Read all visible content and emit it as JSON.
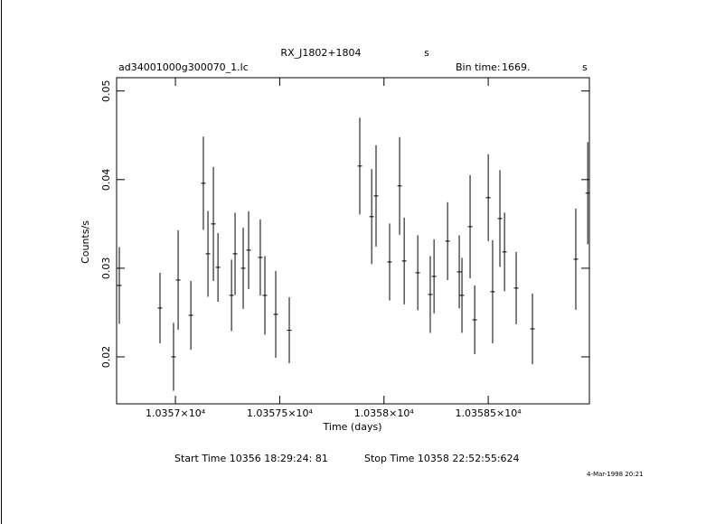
{
  "chart_data": {
    "type": "errorbar",
    "title": "RX_J1802+1804",
    "title_unit": "s",
    "subtitle": "ad34001000g300070_1.lc",
    "bin_time_label": "Bin time:",
    "bin_time": "1669.",
    "bin_time_unit": "s",
    "x_label": "Time (days)",
    "y_label": "Counts/s",
    "start_time": "Start Time 10356 18:29:24: 81",
    "stop_time": "Stop Time 10358 22:52:55:624",
    "timestamp": "4-Mar-1998 20:21",
    "color": "#000000",
    "x": [
      10356.731,
      10356.926,
      10356.991,
      10357.013,
      10357.074,
      10357.134,
      10357.156,
      10357.182,
      10357.204,
      10357.269,
      10357.286,
      10357.325,
      10357.351,
      10357.407,
      10357.429,
      10357.481,
      10357.546,
      10357.884,
      10357.941,
      10357.962,
      10358.027,
      10358.075,
      10358.097,
      10358.162,
      10358.222,
      10358.24,
      10358.305,
      10358.361,
      10358.374,
      10358.413,
      10358.435,
      10358.5,
      10358.521,
      10358.556,
      10358.578,
      10358.634,
      10358.712,
      10358.92,
      10358.977
    ],
    "values": [
      0.02806,
      0.02551,
      0.02,
      0.02867,
      0.02469,
      0.03959,
      0.03163,
      0.035,
      0.0301,
      0.02694,
      0.03163,
      0.03,
      0.03204,
      0.03122,
      0.02694,
      0.0248,
      0.023,
      0.04153,
      0.03582,
      0.03816,
      0.03071,
      0.03929,
      0.03082,
      0.02949,
      0.02704,
      0.02908,
      0.03306,
      0.02959,
      0.02694,
      0.03469,
      0.02418,
      0.03796,
      0.02735,
      0.03561,
      0.03184,
      0.02776,
      0.02316,
      0.03102,
      0.03847
    ],
    "errors": [
      0.00434,
      0.00398,
      0.00383,
      0.00561,
      0.00388,
      0.00526,
      0.00485,
      0.00643,
      0.00388,
      0.00403,
      0.00464,
      0.00459,
      0.00439,
      0.00429,
      0.00444,
      0.0049,
      0.00372,
      0.00546,
      0.00536,
      0.00571,
      0.00434,
      0.00551,
      0.0049,
      0.00423,
      0.00434,
      0.00418,
      0.00439,
      0.00413,
      0.00423,
      0.00582,
      0.00388,
      0.0049,
      0.00582,
      0.00546,
      0.00444,
      0.00408,
      0.00398,
      0.00571,
      0.00577
    ],
    "xlim": [
      10356.718,
      10358.985
    ],
    "ylim": [
      0.0147,
      0.0515
    ],
    "xticks": [
      {
        "value": 10357,
        "label": "1.0357×10⁴"
      },
      {
        "value": 10357.5,
        "label": "1.03575×10⁴"
      },
      {
        "value": 10358,
        "label": "1.0358×10⁴"
      },
      {
        "value": 10358.5,
        "label": "1.03585×10⁴"
      }
    ],
    "yticks": [
      0.02,
      0.03,
      0.04,
      0.05
    ]
  }
}
